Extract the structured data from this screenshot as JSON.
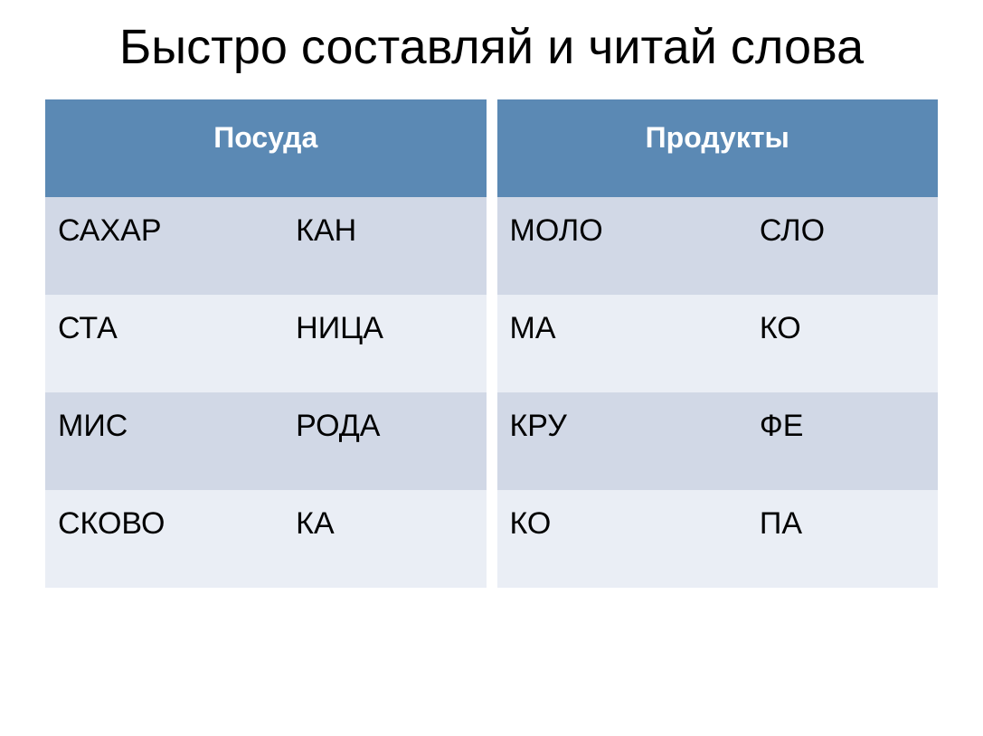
{
  "title": "Быстро составляй и читай слова",
  "colors": {
    "header_bg": "#5b89b4",
    "header_text": "#ffffff",
    "row_odd_bg": "#d1d8e6",
    "row_even_bg": "#eaeef5",
    "cell_text": "#000000",
    "page_bg": "#ffffff"
  },
  "typography": {
    "title_fontsize": 54,
    "header_fontsize": 32,
    "cell_fontsize": 34,
    "font_family": "Arial"
  },
  "table_left": {
    "header": "Посуда",
    "columns": 2,
    "rows": [
      [
        "САХАР",
        "КАН"
      ],
      [
        "СТА",
        "НИЦА"
      ],
      [
        "МИС",
        "РОДА"
      ],
      [
        "СКОВО",
        "КА"
      ]
    ]
  },
  "table_right": {
    "header": "Продукты",
    "columns": 2,
    "rows": [
      [
        "МОЛО",
        "СЛО"
      ],
      [
        "МА",
        "КО"
      ],
      [
        "КРУ",
        "ФЕ"
      ],
      [
        "КО",
        "ПА"
      ]
    ]
  }
}
